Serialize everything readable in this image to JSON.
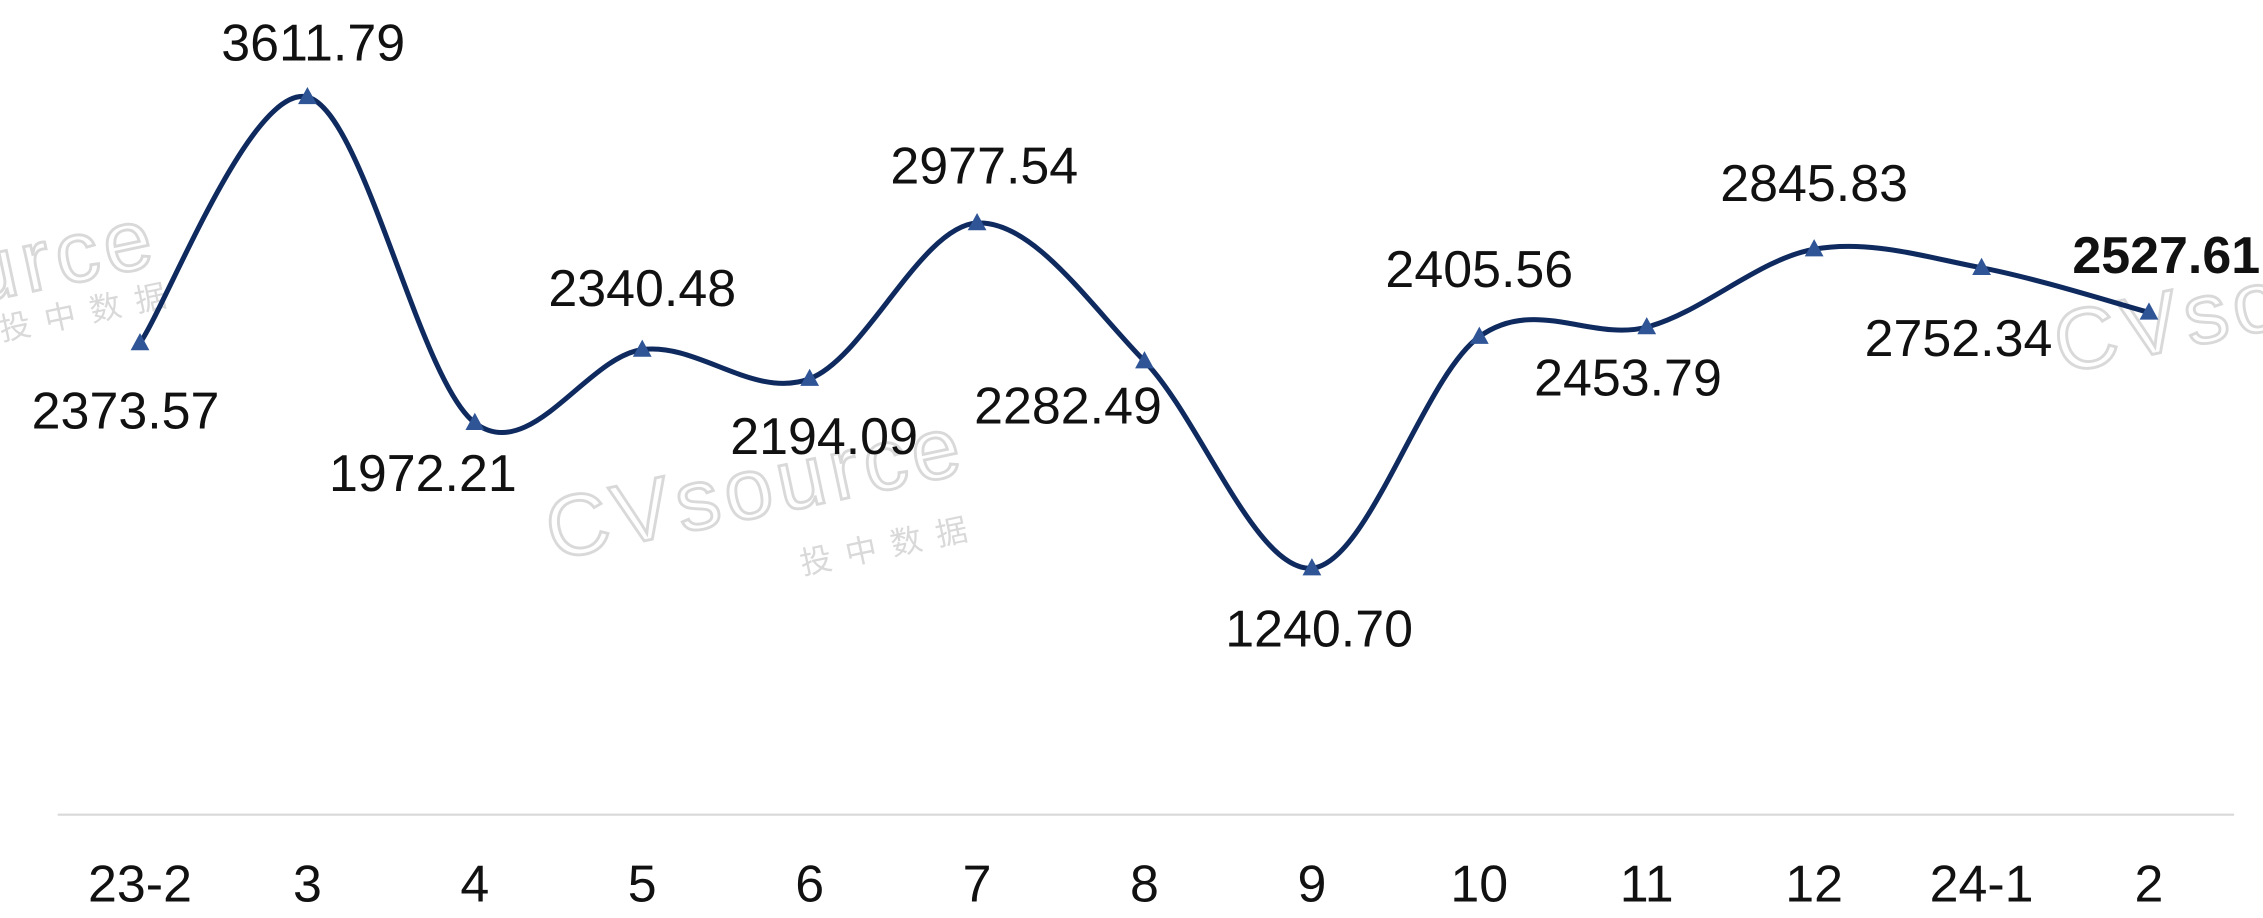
{
  "chart_data": {
    "type": "line",
    "categories": [
      "23-2",
      "3",
      "4",
      "5",
      "6",
      "7",
      "8",
      "9",
      "10",
      "11",
      "12",
      "24-1",
      "2"
    ],
    "series": [
      {
        "name": null,
        "color": "#0f2a5f",
        "marker_color": "#2f5597",
        "values": [
          2373.57,
          3611.79,
          1972.21,
          2340.48,
          2194.09,
          2977.54,
          2282.49,
          1240.7,
          2405.56,
          2453.79,
          2845.83,
          2752.34,
          2527.61
        ],
        "value_labels": [
          "2373.57",
          "3611.79",
          "1972.21",
          "2340.48",
          "2194.09",
          "2977.54",
          "2282.49",
          "1240.70",
          "2405.56",
          "2453.79",
          "2845.83",
          "2752.34",
          "2527.61"
        ]
      }
    ],
    "ylim": [
      0,
      4100
    ],
    "highlight_index": 12,
    "watermark": "CVsource",
    "watermark_sub": "投中数据"
  }
}
